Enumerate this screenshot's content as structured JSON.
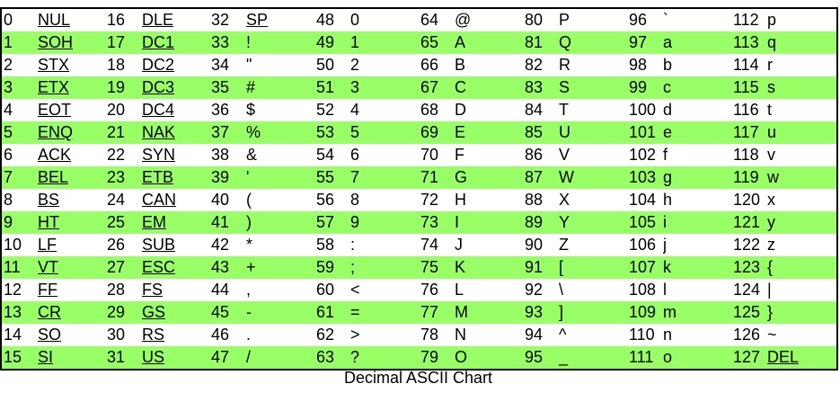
{
  "colors": {
    "stripe": "#99ff66",
    "background": "#ffffff",
    "border": "#000000"
  },
  "caption": "Decimal ASCII Chart",
  "rows": [
    [
      [
        "0",
        "NUL"
      ],
      [
        "16",
        "DLE"
      ],
      [
        "32",
        "SP"
      ],
      [
        "48",
        "0"
      ],
      [
        "64",
        "@"
      ],
      [
        "80",
        "P"
      ],
      [
        "96",
        "`"
      ],
      [
        "112",
        "p"
      ]
    ],
    [
      [
        "1",
        "SOH"
      ],
      [
        "17",
        "DC1"
      ],
      [
        "33",
        "!"
      ],
      [
        "49",
        "1"
      ],
      [
        "65",
        "A"
      ],
      [
        "81",
        "Q"
      ],
      [
        "97",
        "a"
      ],
      [
        "113",
        "q"
      ]
    ],
    [
      [
        "2",
        "STX"
      ],
      [
        "18",
        "DC2"
      ],
      [
        "34",
        "\""
      ],
      [
        "50",
        "2"
      ],
      [
        "66",
        "B"
      ],
      [
        "82",
        "R"
      ],
      [
        "98",
        "b"
      ],
      [
        "114",
        "r"
      ]
    ],
    [
      [
        "3",
        "ETX"
      ],
      [
        "19",
        "DC3"
      ],
      [
        "35",
        "#"
      ],
      [
        "51",
        "3"
      ],
      [
        "67",
        "C"
      ],
      [
        "83",
        "S"
      ],
      [
        "99",
        "c"
      ],
      [
        "115",
        "s"
      ]
    ],
    [
      [
        "4",
        "EOT"
      ],
      [
        "20",
        "DC4"
      ],
      [
        "36",
        "$"
      ],
      [
        "52",
        "4"
      ],
      [
        "68",
        "D"
      ],
      [
        "84",
        "T"
      ],
      [
        "100",
        "d"
      ],
      [
        "116",
        "t"
      ]
    ],
    [
      [
        "5",
        "ENQ"
      ],
      [
        "21",
        "NAK"
      ],
      [
        "37",
        "%"
      ],
      [
        "53",
        "5"
      ],
      [
        "69",
        "E"
      ],
      [
        "85",
        "U"
      ],
      [
        "101",
        "e"
      ],
      [
        "117",
        "u"
      ]
    ],
    [
      [
        "6",
        "ACK"
      ],
      [
        "22",
        "SYN"
      ],
      [
        "38",
        "&"
      ],
      [
        "54",
        "6"
      ],
      [
        "70",
        "F"
      ],
      [
        "86",
        "V"
      ],
      [
        "102",
        "f"
      ],
      [
        "118",
        "v"
      ]
    ],
    [
      [
        "7",
        "BEL"
      ],
      [
        "23",
        "ETB"
      ],
      [
        "39",
        "'"
      ],
      [
        "55",
        "7"
      ],
      [
        "71",
        "G"
      ],
      [
        "87",
        "W"
      ],
      [
        "103",
        "g"
      ],
      [
        "119",
        "w"
      ]
    ],
    [
      [
        "8",
        "BS"
      ],
      [
        "24",
        "CAN"
      ],
      [
        "40",
        "("
      ],
      [
        "56",
        "8"
      ],
      [
        "72",
        "H"
      ],
      [
        "88",
        "X"
      ],
      [
        "104",
        "h"
      ],
      [
        "120",
        "x"
      ]
    ],
    [
      [
        "9",
        "HT"
      ],
      [
        "25",
        "EM"
      ],
      [
        "41",
        ")"
      ],
      [
        "57",
        "9"
      ],
      [
        "73",
        "I"
      ],
      [
        "89",
        "Y"
      ],
      [
        "105",
        "i"
      ],
      [
        "121",
        "y"
      ]
    ],
    [
      [
        "10",
        "LF"
      ],
      [
        "26",
        "SUB"
      ],
      [
        "42",
        "*"
      ],
      [
        "58",
        ":"
      ],
      [
        "74",
        "J"
      ],
      [
        "90",
        "Z"
      ],
      [
        "106",
        "j"
      ],
      [
        "122",
        "z"
      ]
    ],
    [
      [
        "11",
        "VT"
      ],
      [
        "27",
        "ESC"
      ],
      [
        "43",
        "+"
      ],
      [
        "59",
        ";"
      ],
      [
        "75",
        "K"
      ],
      [
        "91",
        "["
      ],
      [
        "107",
        "k"
      ],
      [
        "123",
        "{"
      ]
    ],
    [
      [
        "12",
        "FF"
      ],
      [
        "28",
        "FS"
      ],
      [
        "44",
        ","
      ],
      [
        "60",
        "<"
      ],
      [
        "76",
        "L"
      ],
      [
        "92",
        "\\"
      ],
      [
        "108",
        "l"
      ],
      [
        "124",
        "|"
      ]
    ],
    [
      [
        "13",
        "CR"
      ],
      [
        "29",
        "GS"
      ],
      [
        "45",
        "-"
      ],
      [
        "61",
        "="
      ],
      [
        "77",
        "M"
      ],
      [
        "93",
        "]"
      ],
      [
        "109",
        "m"
      ],
      [
        "125",
        "}"
      ]
    ],
    [
      [
        "14",
        "SO"
      ],
      [
        "30",
        "RS"
      ],
      [
        "46",
        "."
      ],
      [
        "62",
        ">"
      ],
      [
        "78",
        "N"
      ],
      [
        "94",
        "^"
      ],
      [
        "110",
        "n"
      ],
      [
        "126",
        "~"
      ]
    ],
    [
      [
        "15",
        "SI"
      ],
      [
        "31",
        "US"
      ],
      [
        "47",
        "/"
      ],
      [
        "63",
        "?"
      ],
      [
        "79",
        "O"
      ],
      [
        "95",
        "_"
      ],
      [
        "111",
        "o"
      ],
      [
        "127",
        "DEL"
      ]
    ]
  ]
}
